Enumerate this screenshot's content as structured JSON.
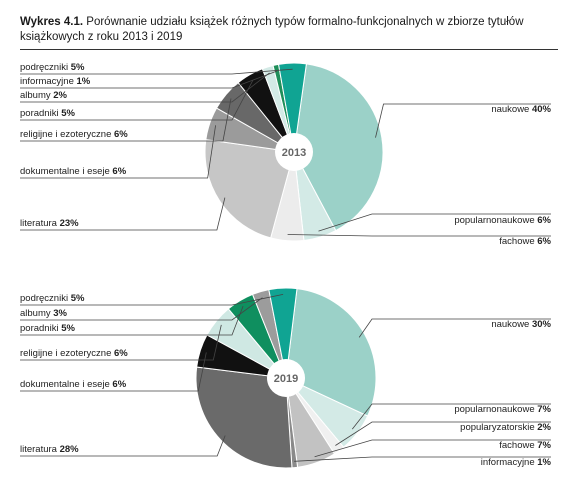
{
  "title": {
    "lead": "Wykres 4.1.",
    "text": " Porównanie udziału książek różnych typów formalno-funkcjonalnych w zbiorze tytułów książkowych z roku 2013 i 2019"
  },
  "chart_data": [
    {
      "type": "pie",
      "center_label": "2013",
      "slices": [
        {
          "label": "naukowe",
          "value": 40,
          "pct": "40%",
          "color": "#9bd1c8"
        },
        {
          "label": "popularnonaukowe",
          "value": 6,
          "pct": "6%",
          "color": "#d3eae6"
        },
        {
          "label": "fachowe",
          "value": 6,
          "pct": "6%",
          "color": "#ececec"
        },
        {
          "label": "literatura",
          "value": 23,
          "pct": "23%",
          "color": "#c6c6c6"
        },
        {
          "label": "dokumentalne i eseje",
          "value": 6,
          "pct": "6%",
          "color": "#9b9b9b"
        },
        {
          "label": "religijne i ezoteryczne",
          "value": 6,
          "pct": "6%",
          "color": "#686868"
        },
        {
          "label": "poradniki",
          "value": 5,
          "pct": "5%",
          "color": "#111111"
        },
        {
          "label": "albumy",
          "value": 2,
          "pct": "2%",
          "color": "#d3eae6"
        },
        {
          "label": "informacyjne",
          "value": 1,
          "pct": "1%",
          "color": "#1f8f5a"
        },
        {
          "label": "podręczniki",
          "value": 5,
          "pct": "5%",
          "color": "#10a493"
        }
      ]
    },
    {
      "type": "pie",
      "center_label": "2019",
      "slices": [
        {
          "label": "naukowe",
          "value": 30,
          "pct": "30%",
          "color": "#9bd1c8"
        },
        {
          "label": "popularnonaukowe",
          "value": 7,
          "pct": "7%",
          "color": "#d3eae6"
        },
        {
          "label": "popularyzatorskie",
          "value": 2,
          "pct": "2%",
          "color": "#f0f0f0"
        },
        {
          "label": "fachowe",
          "value": 7,
          "pct": "7%",
          "color": "#c2c2c2"
        },
        {
          "label": "informacyjne",
          "value": 1,
          "pct": "1%",
          "color": "#8a8a8a"
        },
        {
          "label": "literatura",
          "value": 28,
          "pct": "28%",
          "color": "#6a6a6a"
        },
        {
          "label": "dokumentalne i eseje",
          "value": 6,
          "pct": "6%",
          "color": "#111111"
        },
        {
          "label": "religijne i ezoteryczne",
          "value": 6,
          "pct": "6%",
          "color": "#cfe8e3"
        },
        {
          "label": "poradniki",
          "value": 5,
          "pct": "5%",
          "color": "#0f8f5f"
        },
        {
          "label": "albumy",
          "value": 3,
          "pct": "3%",
          "color": "#9c9c9c"
        },
        {
          "label": "podręczniki",
          "value": 5,
          "pct": "5%",
          "color": "#10a493"
        }
      ]
    }
  ]
}
